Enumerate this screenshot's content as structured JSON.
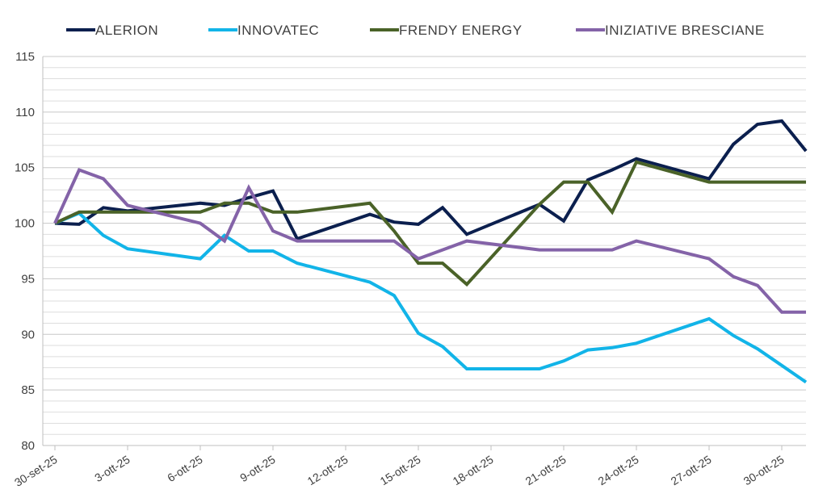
{
  "chart_data": {
    "type": "line",
    "title": "",
    "xlabel": "",
    "ylabel": "",
    "ylim": [
      80,
      115
    ],
    "y_major_ticks": [
      80,
      85,
      90,
      95,
      100,
      105,
      110,
      115
    ],
    "y_minor_step": 1,
    "legend_position": "top",
    "x": [
      "30-set-25",
      "1-ott-25",
      "2-ott-25",
      "3-ott-25",
      "6-ott-25",
      "7-ott-25",
      "8-ott-25",
      "9-ott-25",
      "10-ott-25",
      "13-ott-25",
      "14-ott-25",
      "15-ott-25",
      "16-ott-25",
      "17-ott-25",
      "20-ott-25",
      "21-ott-25",
      "22-ott-25",
      "23-ott-25",
      "24-ott-25",
      "27-ott-25",
      "28-ott-25",
      "29-ott-25",
      "30-ott-25",
      "31-ott-25"
    ],
    "x_day_offsets": [
      0,
      1,
      2,
      3,
      6,
      7,
      8,
      9,
      10,
      13,
      14,
      15,
      16,
      17,
      20,
      21,
      22,
      23,
      24,
      27,
      28,
      29,
      30,
      31
    ],
    "x_tick_labels": [
      "30-set-25",
      "3-ott-25",
      "6-ott-25",
      "9-ott-25",
      "12-ott-25",
      "15-ott-25",
      "18-ott-25",
      "21-ott-25",
      "24-ott-25",
      "27-ott-25",
      "30-ott-25"
    ],
    "x_tick_offsets": [
      0,
      3,
      6,
      9,
      12,
      15,
      18,
      21,
      24,
      27,
      30
    ],
    "series": [
      {
        "name": "ALERION",
        "color": "#0b1f4e",
        "values": [
          100,
          99.9,
          101.4,
          101.1,
          101.8,
          101.6,
          102.3,
          102.9,
          98.6,
          100.8,
          100.1,
          99.9,
          101.4,
          99.0,
          101.7,
          100.2,
          103.9,
          104.8,
          105.8,
          104.0,
          107.1,
          108.9,
          109.2,
          106.5
        ]
      },
      {
        "name": "INNOVATEC",
        "color": "#12b4e8",
        "values": [
          100,
          100.9,
          98.9,
          97.7,
          96.8,
          98.9,
          97.5,
          97.5,
          96.4,
          94.7,
          93.5,
          90.1,
          88.9,
          86.9,
          86.9,
          87.6,
          88.6,
          88.8,
          89.2,
          91.4,
          89.9,
          88.7,
          87.2,
          85.7
        ]
      },
      {
        "name": "FRENDY ENERGY",
        "color": "#4a6228",
        "values": [
          100,
          101.0,
          101.0,
          101.0,
          101.0,
          101.8,
          101.8,
          101.0,
          101.0,
          101.8,
          99.3,
          96.4,
          96.4,
          94.5,
          101.7,
          103.7,
          103.7,
          101.0,
          105.5,
          103.7,
          103.7,
          103.7,
          103.7,
          103.7
        ]
      },
      {
        "name": "INIZIATIVE BRESCIANE",
        "color": "#8463a8",
        "values": [
          100,
          104.8,
          104.0,
          101.6,
          100.0,
          98.4,
          103.2,
          99.3,
          98.4,
          98.4,
          98.4,
          96.8,
          97.6,
          98.4,
          97.6,
          97.6,
          97.6,
          97.6,
          98.4,
          96.8,
          95.2,
          94.4,
          92.0,
          92.0
        ]
      }
    ]
  }
}
